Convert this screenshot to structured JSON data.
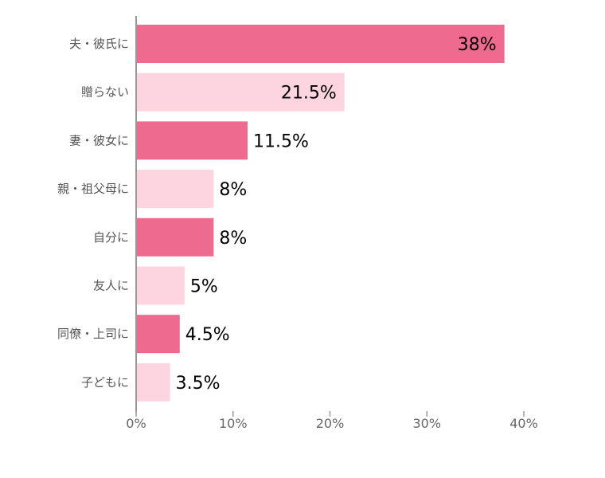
{
  "chart_data": {
    "type": "bar",
    "orientation": "horizontal",
    "categories": [
      "夫・彼氏に",
      "贈らない",
      "妻・彼女に",
      "親・祖父母に",
      "自分に",
      "友人に",
      "同僚・上司に",
      "子どもに"
    ],
    "values": [
      38,
      21.5,
      11.5,
      8,
      8,
      5,
      4.5,
      3.5
    ],
    "data_labels": [
      "38%",
      "21.5%",
      "11.5%",
      "8%",
      "8%",
      "5%",
      "4.5%",
      "3.5%"
    ],
    "title": "",
    "xlabel": "",
    "ylabel": "",
    "xlim": [
      0,
      40
    ],
    "x_ticks": [
      0,
      10,
      20,
      30,
      40
    ],
    "x_tick_labels": [
      "0%",
      "10%",
      "20%",
      "30%",
      "40%"
    ],
    "grid": false,
    "legend": "none",
    "colors": {
      "dark": "#EE6A8E",
      "light": "#FDD5E1",
      "axis": "#999999"
    },
    "bar_color_pattern": [
      "dark",
      "light",
      "dark",
      "light",
      "dark",
      "light",
      "dark",
      "light"
    ]
  }
}
